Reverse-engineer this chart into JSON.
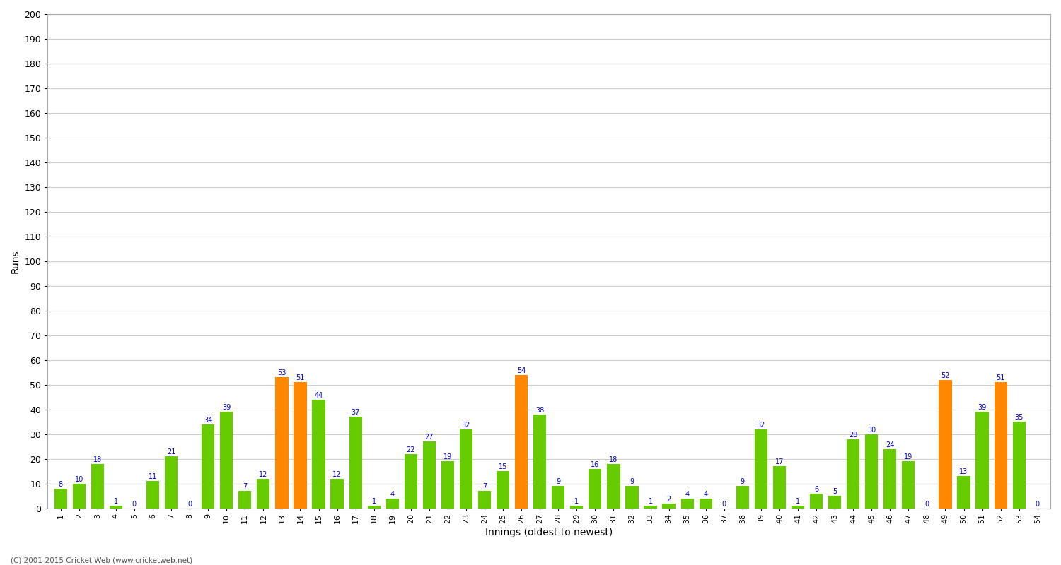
{
  "title": "",
  "xlabel": "Innings (oldest to newest)",
  "ylabel": "Runs",
  "values": [
    8,
    10,
    18,
    1,
    0,
    11,
    21,
    0,
    34,
    39,
    7,
    12,
    53,
    51,
    44,
    12,
    37,
    1,
    4,
    22,
    27,
    19,
    32,
    7,
    15,
    54,
    38,
    9,
    1,
    16,
    18,
    9,
    1,
    2,
    4,
    4,
    0,
    9,
    32,
    17,
    1,
    6,
    5,
    28,
    30,
    24,
    19,
    0,
    52,
    13,
    39,
    51,
    35,
    0
  ],
  "is_orange": [
    false,
    false,
    false,
    false,
    false,
    false,
    false,
    false,
    false,
    false,
    false,
    false,
    true,
    true,
    false,
    false,
    false,
    false,
    false,
    false,
    false,
    false,
    false,
    false,
    false,
    true,
    false,
    false,
    false,
    false,
    false,
    false,
    false,
    false,
    false,
    false,
    false,
    false,
    false,
    false,
    false,
    false,
    false,
    false,
    false,
    false,
    false,
    false,
    true,
    false,
    false,
    true,
    false,
    false
  ],
  "bar_color_green": "#66cc00",
  "bar_color_orange": "#ff8800",
  "ylim": [
    0,
    200
  ],
  "yticks": [
    0,
    10,
    20,
    30,
    40,
    50,
    60,
    70,
    80,
    90,
    100,
    110,
    120,
    130,
    140,
    150,
    160,
    170,
    180,
    190,
    200
  ],
  "bg_color": "#ffffff",
  "plot_bg_color": "#ffffff",
  "grid_color": "#cccccc",
  "label_color": "#0000cc",
  "label_fontsize": 7,
  "axis_fontsize": 8,
  "title_fontsize": 12,
  "footer": "(C) 2001-2015 Cricket Web (www.cricketweb.net)"
}
